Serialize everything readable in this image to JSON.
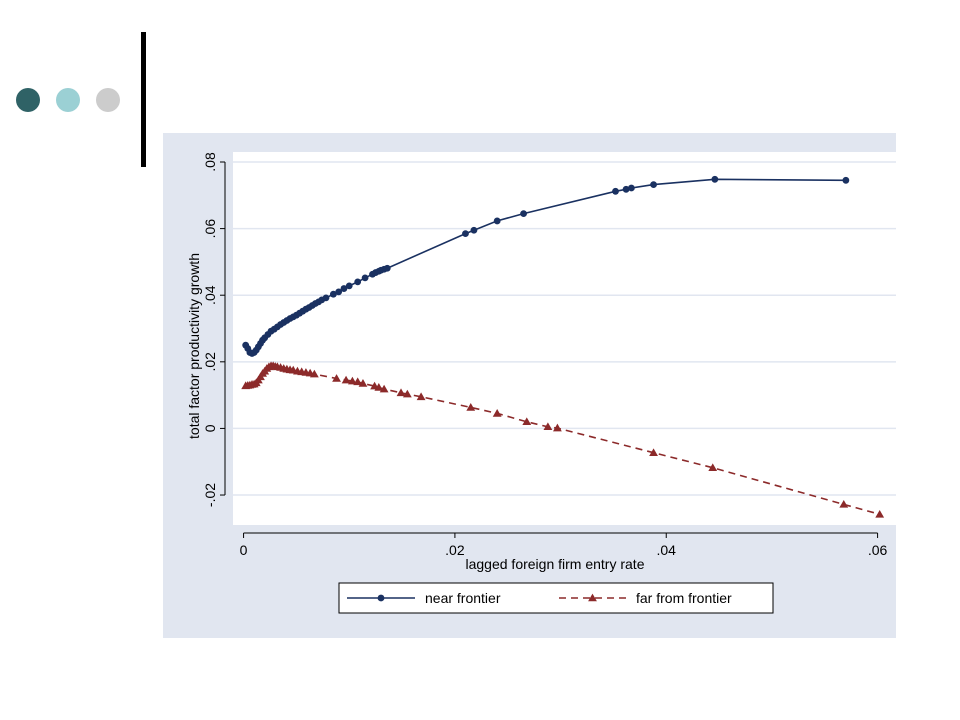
{
  "slide": {
    "decor_dots": [
      {
        "name": "dark-teal-dot",
        "color": "#2f6266"
      },
      {
        "name": "light-teal-dot",
        "color": "#9bd0d4"
      },
      {
        "name": "gray-dot",
        "color": "#cccccc"
      }
    ]
  },
  "colors": {
    "panel_background": "#e1e6f0",
    "plot_background": "#ffffff",
    "grid": "#e1e6f0",
    "near_frontier": "#1a3161",
    "far_from_frontier": "#8c2a2a"
  },
  "chart_data": {
    "type": "line",
    "title": "",
    "xlabel": "lagged foreign firm entry rate",
    "ylabel": "total factor productivity growth",
    "xlim": [
      -0.001,
      0.0625
    ],
    "ylim": [
      -0.029,
      0.083
    ],
    "x_ticks": [
      0,
      0.02,
      0.04,
      0.06
    ],
    "x_tick_labels": [
      "0",
      ".02",
      ".04",
      ".06"
    ],
    "y_ticks": [
      -0.02,
      0,
      0.02,
      0.04,
      0.06,
      0.08
    ],
    "y_tick_labels": [
      "-.02",
      "0",
      ".02",
      ".04",
      ".06",
      ".08"
    ],
    "grid": "horizontal",
    "legend_position": "bottom",
    "series": [
      {
        "name": "near frontier",
        "marker": "circle",
        "line": "solid",
        "color": "#1a3161",
        "x": [
          0.0002,
          0.0004,
          0.0006,
          0.0008,
          0.001,
          0.0012,
          0.0014,
          0.0016,
          0.0018,
          0.002,
          0.0023,
          0.0026,
          0.0029,
          0.0032,
          0.0035,
          0.0038,
          0.0041,
          0.0044,
          0.0047,
          0.005,
          0.0053,
          0.0056,
          0.0059,
          0.0062,
          0.0065,
          0.0068,
          0.0071,
          0.0074,
          0.0078,
          0.0085,
          0.009,
          0.0095,
          0.01,
          0.0108,
          0.0115,
          0.0122,
          0.0125,
          0.0128,
          0.013,
          0.0133,
          0.0136,
          0.021,
          0.0218,
          0.024,
          0.0265,
          0.0352,
          0.0362,
          0.0367,
          0.0388,
          0.0446,
          0.057
        ],
        "y": [
          0.025,
          0.024,
          0.0228,
          0.0225,
          0.0228,
          0.0235,
          0.0245,
          0.0255,
          0.0265,
          0.0272,
          0.0282,
          0.0292,
          0.0298,
          0.0305,
          0.0312,
          0.0318,
          0.0324,
          0.033,
          0.0335,
          0.034,
          0.0346,
          0.0352,
          0.0358,
          0.0363,
          0.0369,
          0.0375,
          0.038,
          0.0386,
          0.0392,
          0.0403,
          0.041,
          0.042,
          0.0428,
          0.044,
          0.0452,
          0.0463,
          0.0468,
          0.0472,
          0.0475,
          0.0478,
          0.0481,
          0.0585,
          0.0595,
          0.0623,
          0.0645,
          0.0712,
          0.0718,
          0.0722,
          0.0732,
          0.0748,
          0.0745
        ]
      },
      {
        "name": "far from frontier",
        "marker": "triangle",
        "line": "dashed",
        "color": "#8c2a2a",
        "x": [
          0.0002,
          0.0004,
          0.0006,
          0.0008,
          0.001,
          0.0012,
          0.0014,
          0.0016,
          0.0018,
          0.002,
          0.0022,
          0.0024,
          0.0026,
          0.0028,
          0.003,
          0.0032,
          0.0035,
          0.0038,
          0.0041,
          0.0044,
          0.0047,
          0.0051,
          0.0055,
          0.0059,
          0.0063,
          0.0067,
          0.0088,
          0.0097,
          0.0103,
          0.0108,
          0.0113,
          0.0124,
          0.0128,
          0.0133,
          0.0149,
          0.0155,
          0.0168,
          0.0215,
          0.024,
          0.0268,
          0.0288,
          0.0297,
          0.0388,
          0.0444,
          0.0568,
          0.0602
        ],
        "y": [
          0.0128,
          0.0129,
          0.013,
          0.0132,
          0.0133,
          0.0137,
          0.0145,
          0.0155,
          0.0165,
          0.0172,
          0.018,
          0.0185,
          0.0188,
          0.0188,
          0.0186,
          0.0185,
          0.0183,
          0.018,
          0.0178,
          0.0176,
          0.0175,
          0.0172,
          0.017,
          0.0168,
          0.0166,
          0.0163,
          0.015,
          0.0145,
          0.0142,
          0.014,
          0.0135,
          0.0127,
          0.0123,
          0.0118,
          0.0107,
          0.0103,
          0.0095,
          0.0063,
          0.0045,
          0.002,
          0.0005,
          0.0001,
          -0.0073,
          -0.0118,
          -0.0228,
          -0.0258
        ]
      }
    ]
  }
}
